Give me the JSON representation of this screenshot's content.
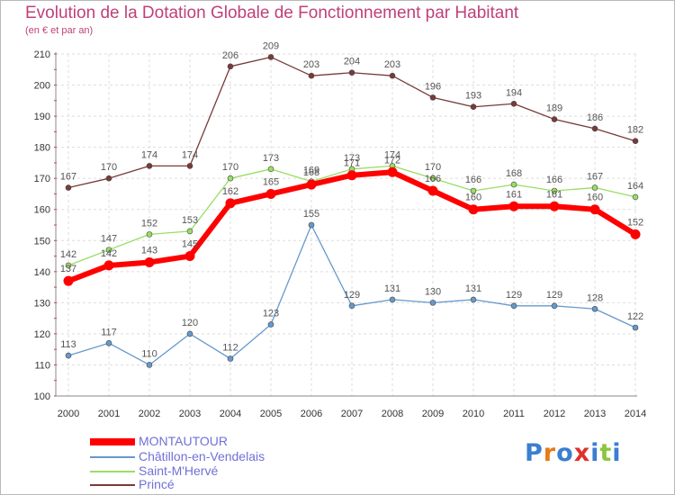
{
  "chart_data": {
    "type": "line",
    "title": "Evolution de la Dotation Globale de Fonctionnement par Habitant",
    "subtitle": "(en € et par an)",
    "x": [
      "2000",
      "2001",
      "2002",
      "2003",
      "2004",
      "2005",
      "2006",
      "2007",
      "2008",
      "2009",
      "2010",
      "2011",
      "2012",
      "2013",
      "2014"
    ],
    "y_ticks": [
      "100",
      "110",
      "120",
      "130",
      "140",
      "150",
      "160",
      "170",
      "180",
      "190",
      "200",
      "210"
    ],
    "ylim": [
      100,
      210
    ],
    "grid": true,
    "legend_position": "bottom-left",
    "series": [
      {
        "name": "MONTAUTOUR",
        "color": "#ff0000",
        "values": [
          137,
          142,
          143,
          145,
          162,
          165,
          168,
          171,
          172,
          166,
          160,
          161,
          161,
          160,
          152
        ],
        "labels": [
          "137",
          "142",
          "143",
          "145",
          "162",
          "165",
          "168",
          "171",
          "172",
          "166",
          "160",
          "161",
          "161",
          "160",
          "152"
        ]
      },
      {
        "name": "Châtillon-en-Vendelais",
        "color": "#6699cc",
        "values": [
          113,
          117,
          110,
          120,
          112,
          123,
          155,
          129,
          131,
          130,
          131,
          129,
          129,
          128,
          122
        ],
        "labels": [
          "113",
          "117",
          "110",
          "120",
          "112",
          "123",
          "155",
          "129",
          "131",
          "130",
          "131",
          "129",
          "129",
          "128",
          "122"
        ]
      },
      {
        "name": "Saint-M'Hervé",
        "color": "#99dd66",
        "values": [
          142,
          147,
          152,
          153,
          170,
          173,
          169,
          173,
          174,
          170,
          166,
          168,
          166,
          167,
          164
        ],
        "labels": [
          "142",
          "147",
          "152",
          "153",
          "170",
          "173",
          "169",
          "173",
          "174",
          "170",
          "166",
          "168",
          "166",
          "167",
          "164"
        ]
      },
      {
        "name": "Princé",
        "color": "#7a3a3a",
        "values": [
          167,
          170,
          174,
          174,
          206,
          209,
          203,
          204,
          203,
          196,
          193,
          194,
          189,
          186,
          182
        ],
        "labels": [
          "167",
          "170",
          "174",
          "174",
          "206",
          "209",
          "203",
          "204",
          "203",
          "196",
          "193",
          "194",
          "189",
          "186",
          "182"
        ]
      }
    ]
  },
  "logo": {
    "text": "Proxiti"
  }
}
